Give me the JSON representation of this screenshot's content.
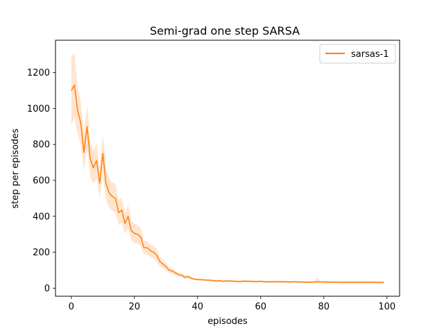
{
  "chart_data": {
    "type": "line",
    "title": "Semi-grad one step SARSA",
    "xlabel": "episodes",
    "ylabel": "step per episodes",
    "xlim": [
      -5,
      104
    ],
    "ylim": [
      -45,
      1380
    ],
    "xticks": [
      0,
      20,
      40,
      60,
      80,
      100
    ],
    "yticks": [
      0,
      200,
      400,
      600,
      800,
      1000,
      1200
    ],
    "grid": false,
    "legend_position": "top-right",
    "series": [
      {
        "name": "sarsas-1",
        "color": "#ff7f0e",
        "x": [
          0,
          1,
          2,
          3,
          4,
          5,
          6,
          7,
          8,
          9,
          10,
          11,
          12,
          13,
          14,
          15,
          16,
          17,
          18,
          19,
          20,
          21,
          22,
          23,
          24,
          25,
          26,
          27,
          28,
          29,
          30,
          31,
          32,
          33,
          34,
          35,
          36,
          37,
          38,
          39,
          40,
          41,
          42,
          43,
          44,
          45,
          46,
          47,
          48,
          49,
          50,
          51,
          52,
          53,
          54,
          55,
          56,
          57,
          58,
          59,
          60,
          61,
          62,
          63,
          64,
          65,
          66,
          67,
          68,
          69,
          70,
          71,
          72,
          73,
          74,
          75,
          76,
          77,
          78,
          79,
          80,
          81,
          82,
          83,
          84,
          85,
          86,
          87,
          88,
          89,
          90,
          91,
          92,
          93,
          94,
          95,
          96,
          97,
          98,
          99
        ],
        "y": [
          1100,
          1130,
          990,
          920,
          755,
          900,
          720,
          670,
          710,
          585,
          750,
          580,
          530,
          510,
          500,
          420,
          435,
          360,
          400,
          320,
          305,
          300,
          285,
          225,
          225,
          210,
          200,
          185,
          150,
          135,
          120,
          100,
          95,
          85,
          75,
          72,
          60,
          65,
          55,
          50,
          48,
          47,
          46,
          45,
          44,
          42,
          40,
          42,
          38,
          40,
          40,
          39,
          38,
          37,
          38,
          39,
          38,
          38,
          37,
          37,
          38,
          36,
          35,
          35,
          36,
          35,
          36,
          35,
          35,
          34,
          35,
          35,
          34,
          34,
          33,
          34,
          33,
          34,
          35,
          34,
          34,
          33,
          33,
          34,
          33,
          33,
          32,
          32,
          33,
          32,
          32,
          33,
          32,
          33,
          32,
          33,
          32,
          32,
          32,
          32
        ],
        "band_lower": [
          910,
          950,
          860,
          800,
          650,
          780,
          620,
          580,
          610,
          500,
          640,
          490,
          450,
          430,
          420,
          350,
          365,
          300,
          335,
          265,
          250,
          248,
          235,
          185,
          188,
          175,
          165,
          150,
          122,
          112,
          100,
          84,
          80,
          72,
          64,
          61,
          50,
          55,
          47,
          43,
          42,
          41,
          40,
          39,
          38,
          36,
          34,
          36,
          32,
          34,
          34,
          33,
          32,
          31,
          32,
          33,
          32,
          32,
          31,
          31,
          32,
          30,
          29,
          29,
          30,
          29,
          30,
          29,
          29,
          28,
          29,
          29,
          28,
          28,
          27,
          28,
          27,
          28,
          29,
          28,
          28,
          27,
          27,
          28,
          27,
          27,
          26,
          26,
          27,
          26,
          26,
          27,
          26,
          27,
          26,
          27,
          26,
          26,
          26,
          26
        ],
        "band_upper": [
          1290,
          1310,
          1120,
          1040,
          870,
          1020,
          820,
          760,
          810,
          670,
          860,
          670,
          610,
          590,
          580,
          490,
          505,
          420,
          465,
          375,
          360,
          352,
          335,
          265,
          262,
          245,
          235,
          220,
          178,
          158,
          140,
          116,
          110,
          98,
          86,
          83,
          70,
          75,
          63,
          57,
          54,
          53,
          52,
          51,
          50,
          48,
          46,
          48,
          44,
          46,
          46,
          45,
          44,
          43,
          44,
          45,
          44,
          44,
          43,
          43,
          44,
          42,
          41,
          41,
          42,
          41,
          42,
          41,
          41,
          40,
          41,
          41,
          40,
          40,
          39,
          40,
          39,
          40,
          58,
          40,
          40,
          39,
          39,
          40,
          39,
          39,
          38,
          38,
          39,
          38,
          38,
          39,
          38,
          39,
          38,
          39,
          38,
          38,
          38,
          38
        ]
      }
    ]
  }
}
